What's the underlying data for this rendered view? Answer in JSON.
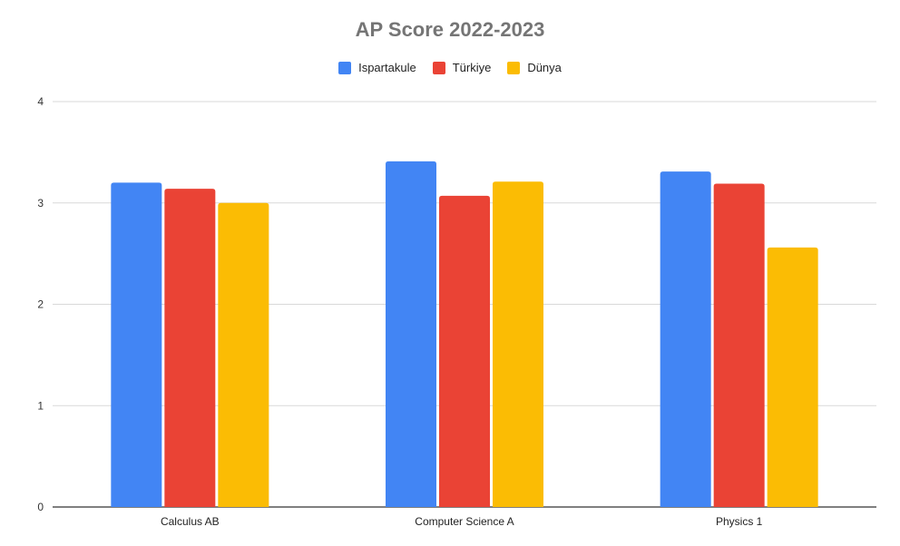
{
  "chart_data": {
    "type": "bar",
    "title": "AP Score 2022-2023",
    "categories": [
      "Calculus AB",
      "Computer Science A",
      "Physics 1"
    ],
    "series": [
      {
        "name": "Ispartakule",
        "values": [
          3.2,
          3.41,
          3.31
        ],
        "color": "#4285F4"
      },
      {
        "name": "Türkiye",
        "values": [
          3.14,
          3.07,
          3.19
        ],
        "color": "#EA4335"
      },
      {
        "name": "Dünya",
        "values": [
          3.0,
          3.21,
          2.56
        ],
        "color": "#FBBC04"
      }
    ],
    "ylim": [
      0,
      4
    ],
    "yticks": [
      "0",
      "1",
      "2",
      "3",
      "4"
    ],
    "grid": true,
    "legend_position": "top-center"
  }
}
